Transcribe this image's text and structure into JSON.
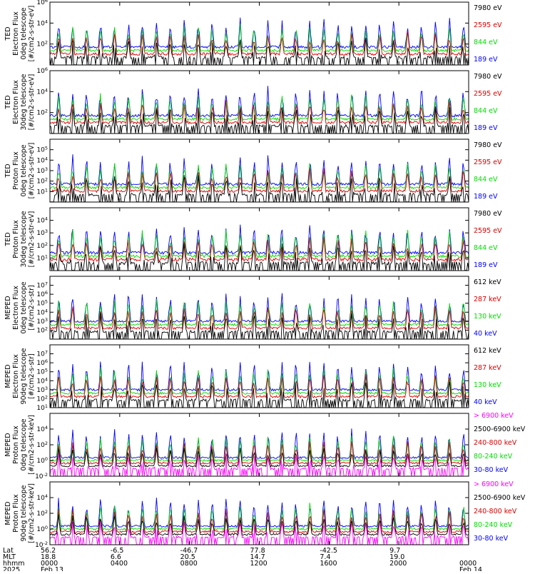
{
  "colors": {
    "black": "#000000",
    "red": "#dd0000",
    "green": "#00dd00",
    "blue": "#0000ff",
    "magenta": "#ff00ff"
  },
  "chart_data": [
    {
      "type": "line",
      "ylabel": [
        "TED",
        "Electron Flux",
        "0deg telescope",
        "[#/cm2-s-str-eV]"
      ],
      "log_y": true,
      "ylim": [
        1,
        1000000
      ],
      "ytick_labels": [
        "10^2",
        "10^4",
        "10^6"
      ],
      "legend": [
        {
          "name": "7980 eV",
          "color": "#000000"
        },
        {
          "name": "2595 eV",
          "color": "#dd0000"
        },
        {
          "name": "844 eV",
          "color": "#00dd00"
        },
        {
          "name": "189 eV",
          "color": "#0000ff"
        }
      ]
    },
    {
      "type": "line",
      "ylabel": [
        "TED",
        "Electron Flux",
        "30deg telescope",
        "[#/cm2-s-str-eV]"
      ],
      "log_y": true,
      "ylim": [
        1,
        1000000
      ],
      "ytick_labels": [
        "10^2",
        "10^4",
        "10^6"
      ],
      "legend": [
        {
          "name": "7980 eV",
          "color": "#000000"
        },
        {
          "name": "2595 eV",
          "color": "#dd0000"
        },
        {
          "name": "844 eV",
          "color": "#00dd00"
        },
        {
          "name": "189 eV",
          "color": "#0000ff"
        }
      ]
    },
    {
      "type": "line",
      "ylabel": [
        "TED",
        "Proton Flux",
        "0deg telescope",
        "[#/cm2-s-str-eV]"
      ],
      "log_y": true,
      "ylim": [
        1,
        1000000
      ],
      "ytick_labels": [
        "10^1",
        "10^2",
        "10^3",
        "10^4",
        "10^5"
      ],
      "legend": [
        {
          "name": "7980 eV",
          "color": "#000000"
        },
        {
          "name": "2595 eV",
          "color": "#dd0000"
        },
        {
          "name": "844 eV",
          "color": "#00dd00"
        },
        {
          "name": "189 eV",
          "color": "#0000ff"
        }
      ]
    },
    {
      "type": "line",
      "ylabel": [
        "TED",
        "Proton Flux",
        "30deg telescope",
        "[#/cm2-s-str-eV]"
      ],
      "log_y": true,
      "ylim": [
        1,
        100000
      ],
      "ytick_labels": [
        "10^1",
        "10^2",
        "10^3",
        "10^4"
      ],
      "legend": [
        {
          "name": "7980 eV",
          "color": "#000000"
        },
        {
          "name": "2595 eV",
          "color": "#dd0000"
        },
        {
          "name": "844 eV",
          "color": "#00dd00"
        },
        {
          "name": "189 eV",
          "color": "#0000ff"
        }
      ]
    },
    {
      "type": "line",
      "ylabel": [
        "MEPED",
        "Electron Flux",
        "0deg telescope",
        "[#/cm2-s-str]"
      ],
      "log_y": true,
      "ylim": [
        10,
        100000000
      ],
      "ytick_labels": [
        "10^2",
        "10^3",
        "10^4",
        "10^5",
        "10^6",
        "10^7"
      ],
      "legend": [
        {
          "name": "612 keV",
          "color": "#000000"
        },
        {
          "name": "287 keV",
          "color": "#dd0000"
        },
        {
          "name": "130 keV",
          "color": "#00dd00"
        },
        {
          "name": "40 keV",
          "color": "#0000ff"
        }
      ]
    },
    {
      "type": "line",
      "ylabel": [
        "MEPED",
        "Electron Flux",
        "90deg telescope",
        "[#/cm2-s-str]"
      ],
      "log_y": true,
      "ylim": [
        10,
        100000000
      ],
      "ytick_labels": [
        "10^1",
        "10^2",
        "10^3",
        "10^4",
        "10^5",
        "10^6",
        "10^7"
      ],
      "legend": [
        {
          "name": "612 keV",
          "color": "#000000"
        },
        {
          "name": "287 keV",
          "color": "#dd0000"
        },
        {
          "name": "130 keV",
          "color": "#00dd00"
        },
        {
          "name": "40 keV",
          "color": "#0000ff"
        }
      ]
    },
    {
      "type": "line",
      "ylabel": [
        "MEPED",
        "Proton Flux",
        "0deg telescope",
        "[#/cm2-s-str-keV]"
      ],
      "log_y": true,
      "ylim": [
        0.01,
        1000000
      ],
      "ytick_labels": [
        "10^-2",
        "10^0",
        "10^2",
        "10^4"
      ],
      "legend": [
        {
          "name": "> 6900 keV",
          "color": "#ff00ff"
        },
        {
          "name": "2500-6900 keV",
          "color": "#000000"
        },
        {
          "name": "240-800 keV",
          "color": "#dd0000"
        },
        {
          "name": "80-240 keV",
          "color": "#00dd00"
        },
        {
          "name": "30-80 keV",
          "color": "#0000ff"
        }
      ]
    },
    {
      "type": "line",
      "ylabel": [
        "MEPED",
        "Proton Flux",
        "90deg telescope",
        "[#/cm2-s-str-keV]"
      ],
      "log_y": true,
      "ylim": [
        0.01,
        1000000
      ],
      "ytick_labels": [
        "10^-2",
        "10^0",
        "10^2",
        "10^4"
      ],
      "legend": [
        {
          "name": "> 6900 keV",
          "color": "#ff00ff"
        },
        {
          "name": "2500-6900 keV",
          "color": "#000000"
        },
        {
          "name": "240-800 keV",
          "color": "#dd0000"
        },
        {
          "name": "80-240 keV",
          "color": "#00dd00"
        },
        {
          "name": "30-80 keV",
          "color": "#0000ff"
        }
      ]
    }
  ],
  "x_axis": {
    "row_labels": [
      "Lat",
      "MLT",
      "hhmm",
      "2025"
    ],
    "ticks": [
      {
        "lat": "56.2",
        "mlt": "18.8",
        "hhmm": "0000",
        "date": "Feb 13"
      },
      {
        "lat": "-6.5",
        "mlt": "6.6",
        "hhmm": "0400",
        "date": ""
      },
      {
        "lat": "-46.7",
        "mlt": "20.5",
        "hhmm": "0800",
        "date": ""
      },
      {
        "lat": "77.8",
        "mlt": "14.7",
        "hhmm": "1200",
        "date": ""
      },
      {
        "lat": "-42.5",
        "mlt": "7.4",
        "hhmm": "1600",
        "date": ""
      },
      {
        "lat": "9.7",
        "mlt": "19.0",
        "hhmm": "2000",
        "date": ""
      },
      {
        "lat": "",
        "mlt": "",
        "hhmm": "0000",
        "date": "Feb 14"
      }
    ],
    "range_hours": [
      0,
      24
    ]
  }
}
